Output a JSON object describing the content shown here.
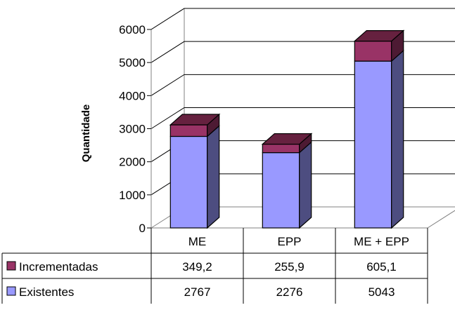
{
  "chart_data": {
    "type": "bar",
    "stacked": true,
    "three_d": true,
    "categories": [
      "ME",
      "EPP",
      "ME + EPP"
    ],
    "series": [
      {
        "name": "Existentes",
        "values": [
          2767,
          2276,
          5043
        ],
        "labels": [
          "2767",
          "2276",
          "5043"
        ],
        "color": "#9999ff",
        "side_color": "#4d4d80",
        "top_color": "#7a7acc"
      },
      {
        "name": "Incrementadas",
        "values": [
          349.2,
          255.9,
          605.1
        ],
        "labels": [
          "349,2",
          "255,9",
          "605,1"
        ],
        "color": "#993366",
        "side_color": "#4d1a33",
        "top_color": "#66213f"
      }
    ],
    "ylabel": "Quantidade",
    "yticks": [
      0,
      1000,
      2000,
      3000,
      4000,
      5000,
      6000
    ],
    "ylim": [
      0,
      6000
    ],
    "grid": true,
    "legend": "data-table-left"
  }
}
